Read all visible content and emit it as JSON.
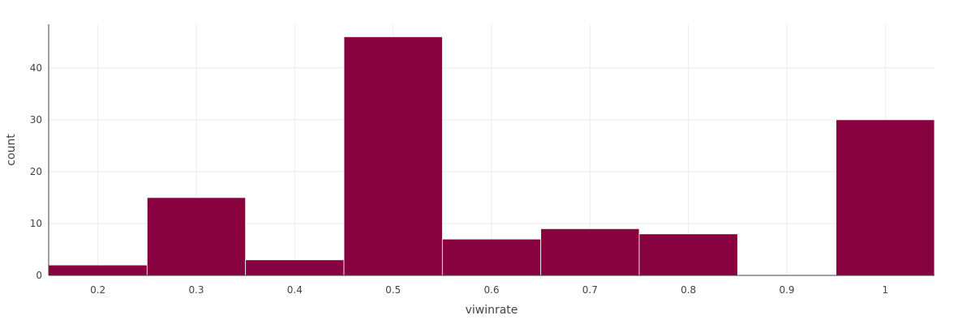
{
  "chart_data": {
    "type": "bar",
    "subtype": "histogram",
    "title": "",
    "xlabel": "viwinrate",
    "ylabel": "count",
    "bin_width": 0.1,
    "bins": [
      {
        "start": 0.15,
        "end": 0.25,
        "count": 2
      },
      {
        "start": 0.25,
        "end": 0.35,
        "count": 15
      },
      {
        "start": 0.35,
        "end": 0.45,
        "count": 3
      },
      {
        "start": 0.45,
        "end": 0.55,
        "count": 46
      },
      {
        "start": 0.55,
        "end": 0.65,
        "count": 7
      },
      {
        "start": 0.65,
        "end": 0.75,
        "count": 9
      },
      {
        "start": 0.75,
        "end": 0.85,
        "count": 8
      },
      {
        "start": 0.85,
        "end": 0.95,
        "count": 0
      },
      {
        "start": 0.95,
        "end": 1.05,
        "count": 30
      }
    ],
    "xlim": [
      0.15,
      1.05
    ],
    "ylim": [
      0,
      48.4
    ],
    "x_ticks": [
      0.2,
      0.3,
      0.4,
      0.5,
      0.6,
      0.7,
      0.8,
      0.9,
      1
    ],
    "x_tick_labels": [
      "0.2",
      "0.3",
      "0.4",
      "0.5",
      "0.6",
      "0.7",
      "0.8",
      "0.9",
      "1"
    ],
    "y_ticks": [
      0,
      10,
      20,
      30,
      40
    ],
    "y_tick_labels": [
      "0",
      "10",
      "20",
      "30",
      "40"
    ],
    "grid": true,
    "bar_color": "#87023f",
    "grid_color": "#ebebeb",
    "axis_color": "#444444"
  }
}
